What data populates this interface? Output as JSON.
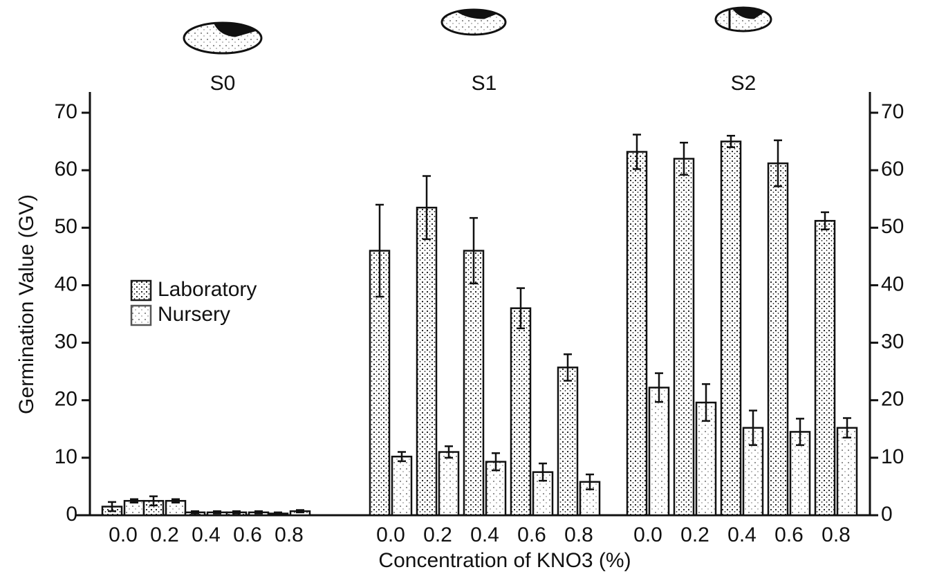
{
  "chart_data": {
    "type": "bar",
    "groups": [
      "S0",
      "S1",
      "S2"
    ],
    "categories": [
      "0.0",
      "0.2",
      "0.4",
      "0.6",
      "0.8",
      "0.0",
      "0.2",
      "0.4",
      "0.6",
      "0.8",
      "0.0",
      "0.2",
      "0.4",
      "0.6",
      "0.8"
    ],
    "x_label": "Concentration of KNO3 (%)",
    "y_label": "Germination Value (GV)",
    "series": [
      {
        "name": "Laboratory",
        "color": "#1a1a1a",
        "values": [
          1.5,
          2.5,
          0.5,
          0.5,
          0.3,
          46,
          53.5,
          46,
          36,
          25.7,
          63.2,
          62,
          65,
          61.2,
          51.2
        ],
        "errors": [
          0.8,
          0.8,
          0.2,
          0.2,
          0.2,
          8,
          5.5,
          5.7,
          3.5,
          2.3,
          3,
          2.8,
          1,
          4,
          1.5
        ]
      },
      {
        "name": "Nursery",
        "color": "#555555",
        "values": [
          2.5,
          2.5,
          0.5,
          0.5,
          0.7,
          10.2,
          11,
          9.3,
          7.5,
          5.8,
          22.2,
          19.6,
          15.2,
          14.5,
          15.2
        ],
        "errors": [
          0.3,
          0.3,
          0.2,
          0.2,
          0.2,
          0.8,
          1,
          1.5,
          1.5,
          1.3,
          2.5,
          3.2,
          3,
          2.3,
          1.7
        ]
      }
    ],
    "ylim": [
      0,
      70
    ],
    "yticks": [
      0,
      10,
      20,
      30,
      40,
      50,
      60,
      70
    ],
    "y2lim": [
      0,
      70
    ],
    "y2ticks": [
      0,
      10,
      20,
      30,
      40,
      50,
      60,
      70
    ]
  }
}
